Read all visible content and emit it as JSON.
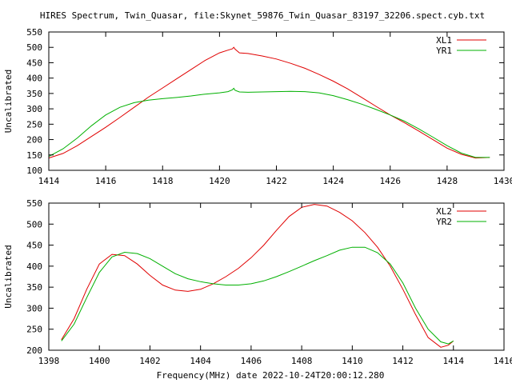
{
  "title": "HIRES Spectrum, Twin_Quasar, file:Skynet_59876_Twin_Quasar_83197_32206.spect.cyb.txt",
  "footer_xlabel": "Frequency(MHz) date 2022-10-24T20:00:12.280",
  "colors": {
    "red": "#e00000",
    "green": "#00b000",
    "frame": "#000000",
    "background": "#ffffff"
  },
  "chart_data": [
    {
      "type": "line",
      "title": "HIRES Spectrum, Twin_Quasar, file:Skynet_59876_Twin_Quasar_83197_32206.spect.cyb.txt",
      "xlabel": "",
      "ylabel": "Uncalibrated",
      "xlim": [
        1414,
        1430
      ],
      "ylim": [
        100,
        550
      ],
      "xticks": [
        1414,
        1416,
        1418,
        1420,
        1422,
        1424,
        1426,
        1428,
        1430
      ],
      "yticks": [
        100,
        150,
        200,
        250,
        300,
        350,
        400,
        450,
        500,
        550
      ],
      "grid": false,
      "legend": "top-right",
      "series": [
        {
          "name": "XL1",
          "color": "#e00000",
          "x": [
            1414.0,
            1414.5,
            1415.0,
            1415.5,
            1416.0,
            1416.5,
            1417.0,
            1417.5,
            1418.0,
            1418.5,
            1419.0,
            1419.5,
            1420.0,
            1420.3,
            1420.45,
            1420.5,
            1420.55,
            1420.7,
            1421.0,
            1421.5,
            1422.0,
            1422.5,
            1423.0,
            1423.5,
            1424.0,
            1424.5,
            1425.0,
            1425.5,
            1426.0,
            1426.5,
            1427.0,
            1427.5,
            1428.0,
            1428.5,
            1429.0,
            1429.5
          ],
          "y": [
            140,
            155,
            180,
            210,
            240,
            272,
            305,
            338,
            368,
            398,
            428,
            458,
            482,
            491,
            495,
            500,
            494,
            482,
            480,
            472,
            462,
            448,
            432,
            412,
            390,
            365,
            337,
            308,
            280,
            255,
            228,
            200,
            172,
            152,
            140,
            142
          ]
        },
        {
          "name": "YR1",
          "color": "#00b000",
          "x": [
            1414.0,
            1414.5,
            1415.0,
            1415.5,
            1416.0,
            1416.5,
            1417.0,
            1417.5,
            1418.0,
            1418.5,
            1419.0,
            1419.5,
            1420.0,
            1420.3,
            1420.45,
            1420.5,
            1420.55,
            1420.7,
            1421.0,
            1421.5,
            1422.0,
            1422.5,
            1423.0,
            1423.5,
            1424.0,
            1424.5,
            1425.0,
            1425.5,
            1426.0,
            1426.5,
            1427.0,
            1427.5,
            1428.0,
            1428.5,
            1429.0,
            1429.5
          ],
          "y": [
            145,
            170,
            205,
            245,
            280,
            305,
            320,
            328,
            333,
            337,
            342,
            348,
            352,
            356,
            362,
            367,
            360,
            355,
            354,
            355,
            356,
            357,
            356,
            352,
            343,
            330,
            315,
            298,
            280,
            260,
            235,
            208,
            180,
            156,
            142,
            142
          ]
        }
      ]
    },
    {
      "type": "line",
      "xlabel": "Frequency(MHz) date 2022-10-24T20:00:12.280",
      "ylabel": "Uncalibrated",
      "xlim": [
        1398,
        1416
      ],
      "ylim": [
        200,
        550
      ],
      "xticks": [
        1398,
        1400,
        1402,
        1404,
        1406,
        1408,
        1410,
        1412,
        1414,
        1416
      ],
      "yticks": [
        200,
        250,
        300,
        350,
        400,
        450,
        500,
        550
      ],
      "grid": false,
      "legend": "top-right",
      "series": [
        {
          "name": "XL2",
          "color": "#e00000",
          "x": [
            1398.5,
            1399.0,
            1399.5,
            1400.0,
            1400.5,
            1401.0,
            1401.5,
            1402.0,
            1402.5,
            1403.0,
            1403.5,
            1404.0,
            1404.5,
            1405.0,
            1405.5,
            1406.0,
            1406.5,
            1407.0,
            1407.5,
            1408.0,
            1408.5,
            1409.0,
            1409.5,
            1410.0,
            1410.5,
            1411.0,
            1411.5,
            1412.0,
            1412.5,
            1413.0,
            1413.5,
            1413.8,
            1414.0
          ],
          "y": [
            225,
            275,
            345,
            405,
            428,
            425,
            405,
            378,
            355,
            343,
            340,
            345,
            358,
            375,
            395,
            420,
            450,
            485,
            518,
            540,
            547,
            543,
            528,
            508,
            480,
            445,
            400,
            345,
            285,
            230,
            207,
            212,
            222
          ]
        },
        {
          "name": "YR2",
          "color": "#00b000",
          "x": [
            1398.5,
            1399.0,
            1399.5,
            1400.0,
            1400.5,
            1401.0,
            1401.5,
            1402.0,
            1402.5,
            1403.0,
            1403.5,
            1404.0,
            1404.5,
            1405.0,
            1405.5,
            1406.0,
            1406.5,
            1407.0,
            1407.5,
            1408.0,
            1408.5,
            1409.0,
            1409.5,
            1410.0,
            1410.5,
            1411.0,
            1411.5,
            1412.0,
            1412.5,
            1413.0,
            1413.5,
            1413.8,
            1414.0
          ],
          "y": [
            222,
            262,
            325,
            385,
            422,
            433,
            430,
            418,
            400,
            382,
            370,
            363,
            358,
            355,
            355,
            358,
            365,
            375,
            387,
            400,
            413,
            425,
            438,
            445,
            445,
            432,
            405,
            360,
            300,
            250,
            220,
            215,
            222
          ]
        }
      ]
    }
  ]
}
